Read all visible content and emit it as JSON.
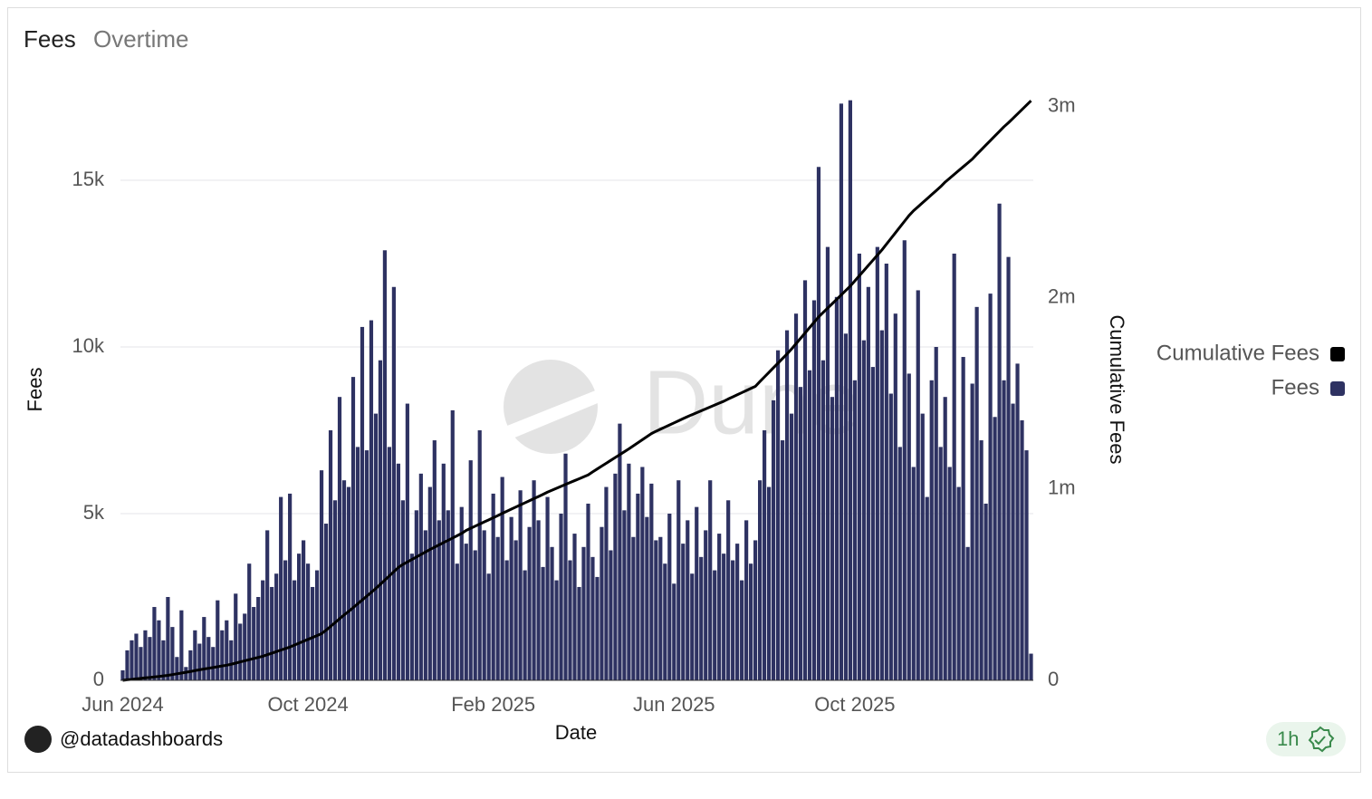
{
  "title": "Fees",
  "subtitle": "Overtime",
  "author": "@datadashboards",
  "refresh": "1h",
  "watermark": "Dune",
  "chart_data": {
    "type": "bar",
    "x_label": "Date",
    "y_label": "Fees",
    "y2_label": "Cumulative Fees",
    "legend": "right",
    "grid": true,
    "ylim": [
      0,
      17500
    ],
    "yticks": [
      0,
      {
        "value": 5000,
        "label": "5k"
      },
      {
        "value": 10000,
        "label": "10k"
      },
      {
        "value": 15000,
        "label": "15k"
      }
    ],
    "y2lim": [
      0,
      3050000
    ],
    "y2ticks": [
      0,
      {
        "value": 1000000,
        "label": "1m"
      },
      {
        "value": 2000000,
        "label": "2m"
      },
      {
        "value": 3000000,
        "label": "3m"
      }
    ],
    "categories": [
      "Jun 2024",
      null,
      null,
      null,
      null,
      null,
      null,
      null,
      null,
      null,
      null,
      null,
      null,
      null,
      null,
      null,
      null,
      null,
      null,
      null,
      null,
      null,
      null,
      null,
      null,
      null,
      null,
      null,
      null,
      null,
      null,
      null,
      null,
      null,
      null,
      null,
      null,
      null,
      null,
      null,
      null,
      "Oct 2024",
      null,
      null,
      null,
      null,
      null,
      null,
      null,
      null,
      null,
      null,
      null,
      null,
      null,
      null,
      null,
      null,
      null,
      null,
      null,
      null,
      null,
      null,
      null,
      null,
      null,
      null,
      null,
      null,
      null,
      null,
      null,
      null,
      null,
      null,
      null,
      null,
      null,
      null,
      null,
      null,
      "Feb 2025",
      null,
      null,
      null,
      null,
      null,
      null,
      null,
      null,
      null,
      null,
      null,
      null,
      null,
      null,
      null,
      null,
      null,
      null,
      null,
      null,
      null,
      null,
      null,
      null,
      null,
      null,
      null,
      null,
      null,
      null,
      null,
      null,
      null,
      null,
      null,
      null,
      null,
      null,
      null,
      "Jun 2025",
      null,
      null,
      null,
      null,
      null,
      null,
      null,
      null,
      null,
      null,
      null,
      null,
      null,
      null,
      null,
      null,
      null,
      null,
      null,
      null,
      null,
      null,
      null,
      null,
      null,
      null,
      null,
      null,
      null,
      null,
      null,
      null,
      null,
      null,
      null,
      null,
      null,
      null,
      null,
      "Oct 2025",
      null,
      null,
      null,
      null,
      null,
      null,
      null,
      null,
      null,
      null,
      null,
      null,
      null,
      null,
      null,
      null,
      null,
      null,
      null,
      null,
      null,
      null,
      null,
      null,
      null,
      null,
      null,
      null,
      null,
      null,
      null,
      null,
      null,
      null,
      null,
      null,
      null,
      null,
      null
    ],
    "series": [
      {
        "name": "Fees",
        "type": "bar",
        "color": "#2e3262",
        "values": [
          300,
          900,
          1200,
          1400,
          1000,
          1500,
          1300,
          2200,
          1800,
          1200,
          2500,
          1600,
          700,
          2100,
          400,
          900,
          1500,
          1100,
          1900,
          1300,
          1000,
          2400,
          1500,
          1800,
          1200,
          2600,
          1700,
          2000,
          3500,
          2200,
          2500,
          3000,
          4500,
          2800,
          3200,
          5500,
          3600,
          5600,
          3000,
          3800,
          4200,
          3500,
          2800,
          3300,
          6300,
          4700,
          7500,
          5400,
          8500,
          6000,
          5800,
          9100,
          7000,
          10600,
          6900,
          10800,
          8000,
          9600,
          12900,
          7000,
          11800,
          6500,
          5400,
          8300,
          3800,
          5100,
          6200,
          4500,
          5800,
          7200,
          4800,
          6500,
          5100,
          8100,
          3500,
          5200,
          4100,
          6600,
          3900,
          7500,
          4500,
          3200,
          5600,
          4300,
          6100,
          3600,
          4900,
          4200,
          5700,
          3300,
          4600,
          6000,
          4800,
          3400,
          5500,
          4000,
          3000,
          5000,
          6800,
          3600,
          4400,
          2800,
          4000,
          5300,
          3700,
          3100,
          4600,
          5800,
          3900,
          6200,
          7700,
          5100,
          6500,
          4300,
          5600,
          6400,
          4900,
          5900,
          4200,
          4300,
          3500,
          5000,
          2900,
          6000,
          4100,
          4800,
          3200,
          5200,
          3700,
          4500,
          6000,
          3300,
          4400,
          3800,
          5400,
          3600,
          4100,
          3000,
          4800,
          3500,
          4200,
          6000,
          7500,
          5800,
          8400,
          9900,
          7200,
          10500,
          8000,
          11000,
          8800,
          12000,
          9300,
          11400,
          15400,
          9600,
          13000,
          8500,
          11500,
          17300,
          10400,
          17400,
          9000,
          12800,
          10200,
          11800,
          9400,
          13000,
          10500,
          12500,
          8600,
          11000,
          7000,
          13200,
          9200,
          6400,
          11700,
          8000,
          5500,
          9000,
          10000,
          7000,
          8500,
          6400,
          12800,
          5800,
          9700,
          4000,
          8900,
          11200,
          7200,
          5300,
          11600,
          7900,
          14300,
          9000,
          12700,
          8300,
          9500,
          7800,
          6900,
          800
        ]
      },
      {
        "name": "Cumulative Fees",
        "type": "line",
        "axis": "y2",
        "color": "#000000",
        "values": [
          0,
          3000,
          5000,
          8000,
          10000,
          13000,
          15000,
          18000,
          20000,
          23000,
          26000,
          30000,
          34000,
          38000,
          42000,
          46000,
          51000,
          55000,
          59000,
          63000,
          67000,
          71000,
          75000,
          79000,
          84000,
          90000,
          96000,
          102000,
          108000,
          114000,
          120000,
          126000,
          134000,
          142000,
          150000,
          158000,
          166000,
          174000,
          184000,
          194000,
          204000,
          214000,
          224000,
          234000,
          244000,
          262000,
          282000,
          302000,
          322000,
          342000,
          360000,
          380000,
          400000,
          420000,
          440000,
          460000,
          480000,
          502000,
          524000,
          546000,
          568000,
          590000,
          606000,
          619000,
          632000,
          645000,
          658000,
          671000,
          684000,
          696000,
          708000,
          720000,
          732000,
          744000,
          756000,
          768000,
          784000,
          795000,
          806000,
          817000,
          828000,
          839000,
          850000,
          861000,
          873000,
          884000,
          895000,
          906000,
          917000,
          928000,
          939000,
          950000,
          961000,
          972000,
          984000,
          994000,
          1004000,
          1014000,
          1024000,
          1034000,
          1044000,
          1054000,
          1064000,
          1074000,
          1090000,
          1105000,
          1120000,
          1135000,
          1150000,
          1165000,
          1180000,
          1195000,
          1210000,
          1226000,
          1242000,
          1258000,
          1274000,
          1290000,
          1302000,
          1313000,
          1324000,
          1335000,
          1346000,
          1357000,
          1368000,
          1379000,
          1389000,
          1399000,
          1409000,
          1419000,
          1429000,
          1439000,
          1449000,
          1459000,
          1471000,
          1482000,
          1493000,
          1504000,
          1515000,
          1526000,
          1537000,
          1562000,
          1586000,
          1610000,
          1634000,
          1658000,
          1682000,
          1706000,
          1732000,
          1760000,
          1788000,
          1816000,
          1844000,
          1872000,
          1900000,
          1923000,
          1946000,
          1969000,
          1992000,
          2015000,
          2038000,
          2061000,
          2088000,
          2115000,
          2142000,
          2169000,
          2196000,
          2223000,
          2250000,
          2280000,
          2310000,
          2340000,
          2370000,
          2400000,
          2430000,
          2455000,
          2476000,
          2497000,
          2518000,
          2539000,
          2560000,
          2581000,
          2605000,
          2625000,
          2645000,
          2665000,
          2685000,
          2705000,
          2725000,
          2750000,
          2774000,
          2798000,
          2822000,
          2846000,
          2870000,
          2894000,
          2915000,
          2938000,
          2961000,
          2984000,
          3007000,
          3030000
        ]
      }
    ]
  }
}
